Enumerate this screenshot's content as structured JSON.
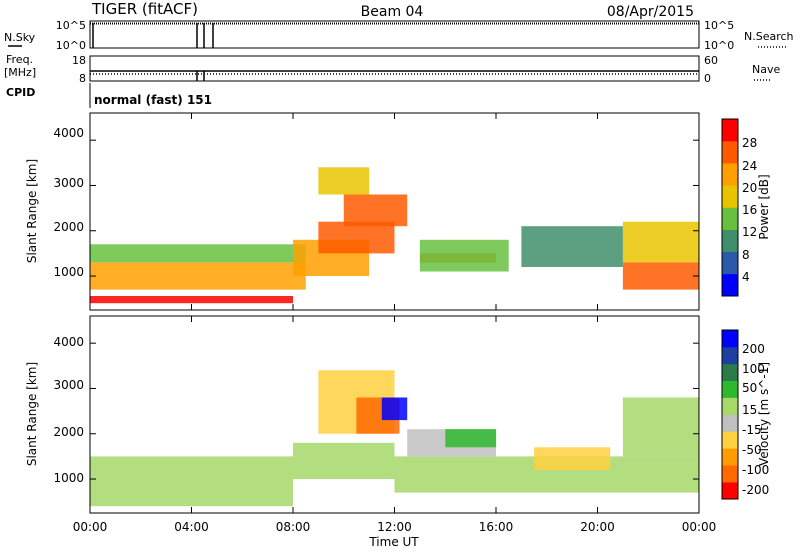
{
  "header": {
    "site": "TIGER (fitACF)",
    "beam": "Beam 04",
    "date": "08/Apr/2015"
  },
  "status_panels": {
    "nsky_label": "N.Sky",
    "nsky_ticks": [
      "10^5",
      "10^0"
    ],
    "nsearch_label": "N.Search",
    "nsearch_ticks": [
      "10^5",
      "10^0"
    ],
    "freq_label_1": "Freq.",
    "freq_label_2": "[MHz]",
    "freq_ticks": [
      "18",
      "8"
    ],
    "nave_label": "Nave",
    "nave_ticks": [
      "60",
      "0"
    ],
    "cpid_label": "CPID",
    "cpid_text": "normal (fast) 151"
  },
  "time_axis": {
    "xlabel": "Time UT",
    "ticks": [
      "00:00",
      "04:00",
      "08:00",
      "12:00",
      "16:00",
      "20:00",
      "00:00"
    ]
  },
  "colors": {
    "power": [
      "#0000ff",
      "#2a5aa8",
      "#3f8f6b",
      "#67c13f",
      "#e8c400",
      "#ffa000",
      "#ff5a00",
      "#ff0000"
    ],
    "velocity": [
      "#ff0000",
      "#ff6a00",
      "#ff9d00",
      "#ffd040",
      "#c0c0c0",
      "#a6d86a",
      "#2fb82f",
      "#2a7a4a",
      "#1f3fa0",
      "#0000ff"
    ]
  },
  "chart_data": [
    {
      "type": "heatmap",
      "name": "power",
      "ylabel": "Slant Range [km]",
      "yticks": [
        "4000",
        "3000",
        "2000",
        "1000"
      ],
      "ylim": [
        250,
        4600
      ],
      "xlim_hours": [
        0,
        24
      ],
      "colorbar": {
        "label": "Power [dB]",
        "ticks": [
          "28",
          "24",
          "20",
          "16",
          "12",
          "8",
          "4"
        ],
        "range": [
          0,
          32
        ]
      },
      "features": [
        {
          "t": [
            0.0,
            8.0
          ],
          "r": [
            400,
            560
          ],
          "v": 28
        },
        {
          "t": [
            0.0,
            8.5
          ],
          "r": [
            700,
            1300
          ],
          "v": 20
        },
        {
          "t": [
            0.0,
            8.5
          ],
          "r": [
            1300,
            1700
          ],
          "v": 12
        },
        {
          "t": [
            8.0,
            11.0
          ],
          "r": [
            1000,
            1800
          ],
          "v": 22
        },
        {
          "t": [
            9.0,
            12.0
          ],
          "r": [
            1500,
            2200
          ],
          "v": 26
        },
        {
          "t": [
            10.0,
            12.5
          ],
          "r": [
            2100,
            2800
          ],
          "v": 24
        },
        {
          "t": [
            9.0,
            11.0
          ],
          "r": [
            2800,
            3400
          ],
          "v": 18
        },
        {
          "t": [
            13.0,
            16.0
          ],
          "r": [
            1300,
            1500
          ],
          "v": 26
        },
        {
          "t": [
            13.0,
            16.5
          ],
          "r": [
            1100,
            1800
          ],
          "v": 14
        },
        {
          "t": [
            17.0,
            21.0
          ],
          "r": [
            1200,
            2100
          ],
          "v": 10
        },
        {
          "t": [
            21.0,
            24.0
          ],
          "r": [
            700,
            1300
          ],
          "v": 24
        },
        {
          "t": [
            21.0,
            24.0
          ],
          "r": [
            1300,
            2200
          ],
          "v": 16
        }
      ]
    },
    {
      "type": "heatmap",
      "name": "velocity",
      "ylabel": "Slant Range [km]",
      "yticks": [
        "4000",
        "3000",
        "2000",
        "1000"
      ],
      "ylim": [
        250,
        4600
      ],
      "xlim_hours": [
        0,
        24
      ],
      "colorbar": {
        "label": "Velocity [m s^-1]",
        "ticks": [
          "200",
          "100",
          "50",
          "15",
          "-15",
          "-50",
          "-100",
          "-200"
        ],
        "range": [
          -250,
          250
        ]
      },
      "features": [
        {
          "t": [
            0.0,
            8.0
          ],
          "r": [
            400,
            1500
          ],
          "v": 0
        },
        {
          "t": [
            8.0,
            12.0
          ],
          "r": [
            1000,
            1800
          ],
          "v": 0
        },
        {
          "t": [
            12.0,
            24.0
          ],
          "r": [
            700,
            1500
          ],
          "v": 0
        },
        {
          "t": [
            9.0,
            12.0
          ],
          "r": [
            2000,
            3400
          ],
          "v": -60
        },
        {
          "t": [
            10.5,
            12.2
          ],
          "r": [
            2000,
            2800
          ],
          "v": -200
        },
        {
          "t": [
            11.5,
            12.5
          ],
          "r": [
            2300,
            2800
          ],
          "v": 220
        },
        {
          "t": [
            12.5,
            16.0
          ],
          "r": [
            1500,
            2100
          ],
          "v": -40
        },
        {
          "t": [
            14.0,
            16.0
          ],
          "r": [
            1700,
            2100
          ],
          "v": 50
        },
        {
          "t": [
            17.5,
            20.5
          ],
          "r": [
            1200,
            1700
          ],
          "v": -70
        },
        {
          "t": [
            21.0,
            24.0
          ],
          "r": [
            1500,
            2800
          ],
          "v": 45
        }
      ]
    }
  ]
}
